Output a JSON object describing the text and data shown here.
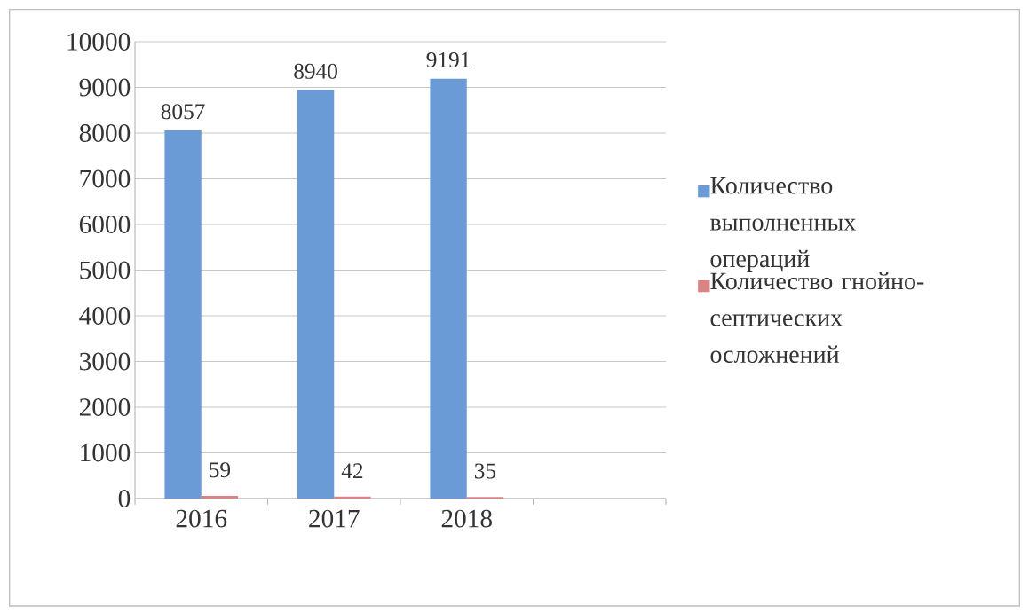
{
  "chart_data": {
    "type": "bar",
    "categories": [
      "2016",
      "2017",
      "2018",
      null
    ],
    "series": [
      {
        "name": "Количество выполненных операций",
        "color": "#6a9bd6",
        "values": [
          8057,
          8940,
          9191,
          null
        ]
      },
      {
        "name": "Количество гнойно-септических осложнений",
        "color": "#d98585",
        "values": [
          59,
          42,
          35,
          null
        ]
      }
    ],
    "ylim": [
      0,
      10000
    ],
    "yticks": [
      0,
      1000,
      2000,
      3000,
      4000,
      5000,
      6000,
      7000,
      8000,
      9000,
      10000
    ],
    "grid": "y",
    "legend": "right",
    "data_labels": true
  }
}
